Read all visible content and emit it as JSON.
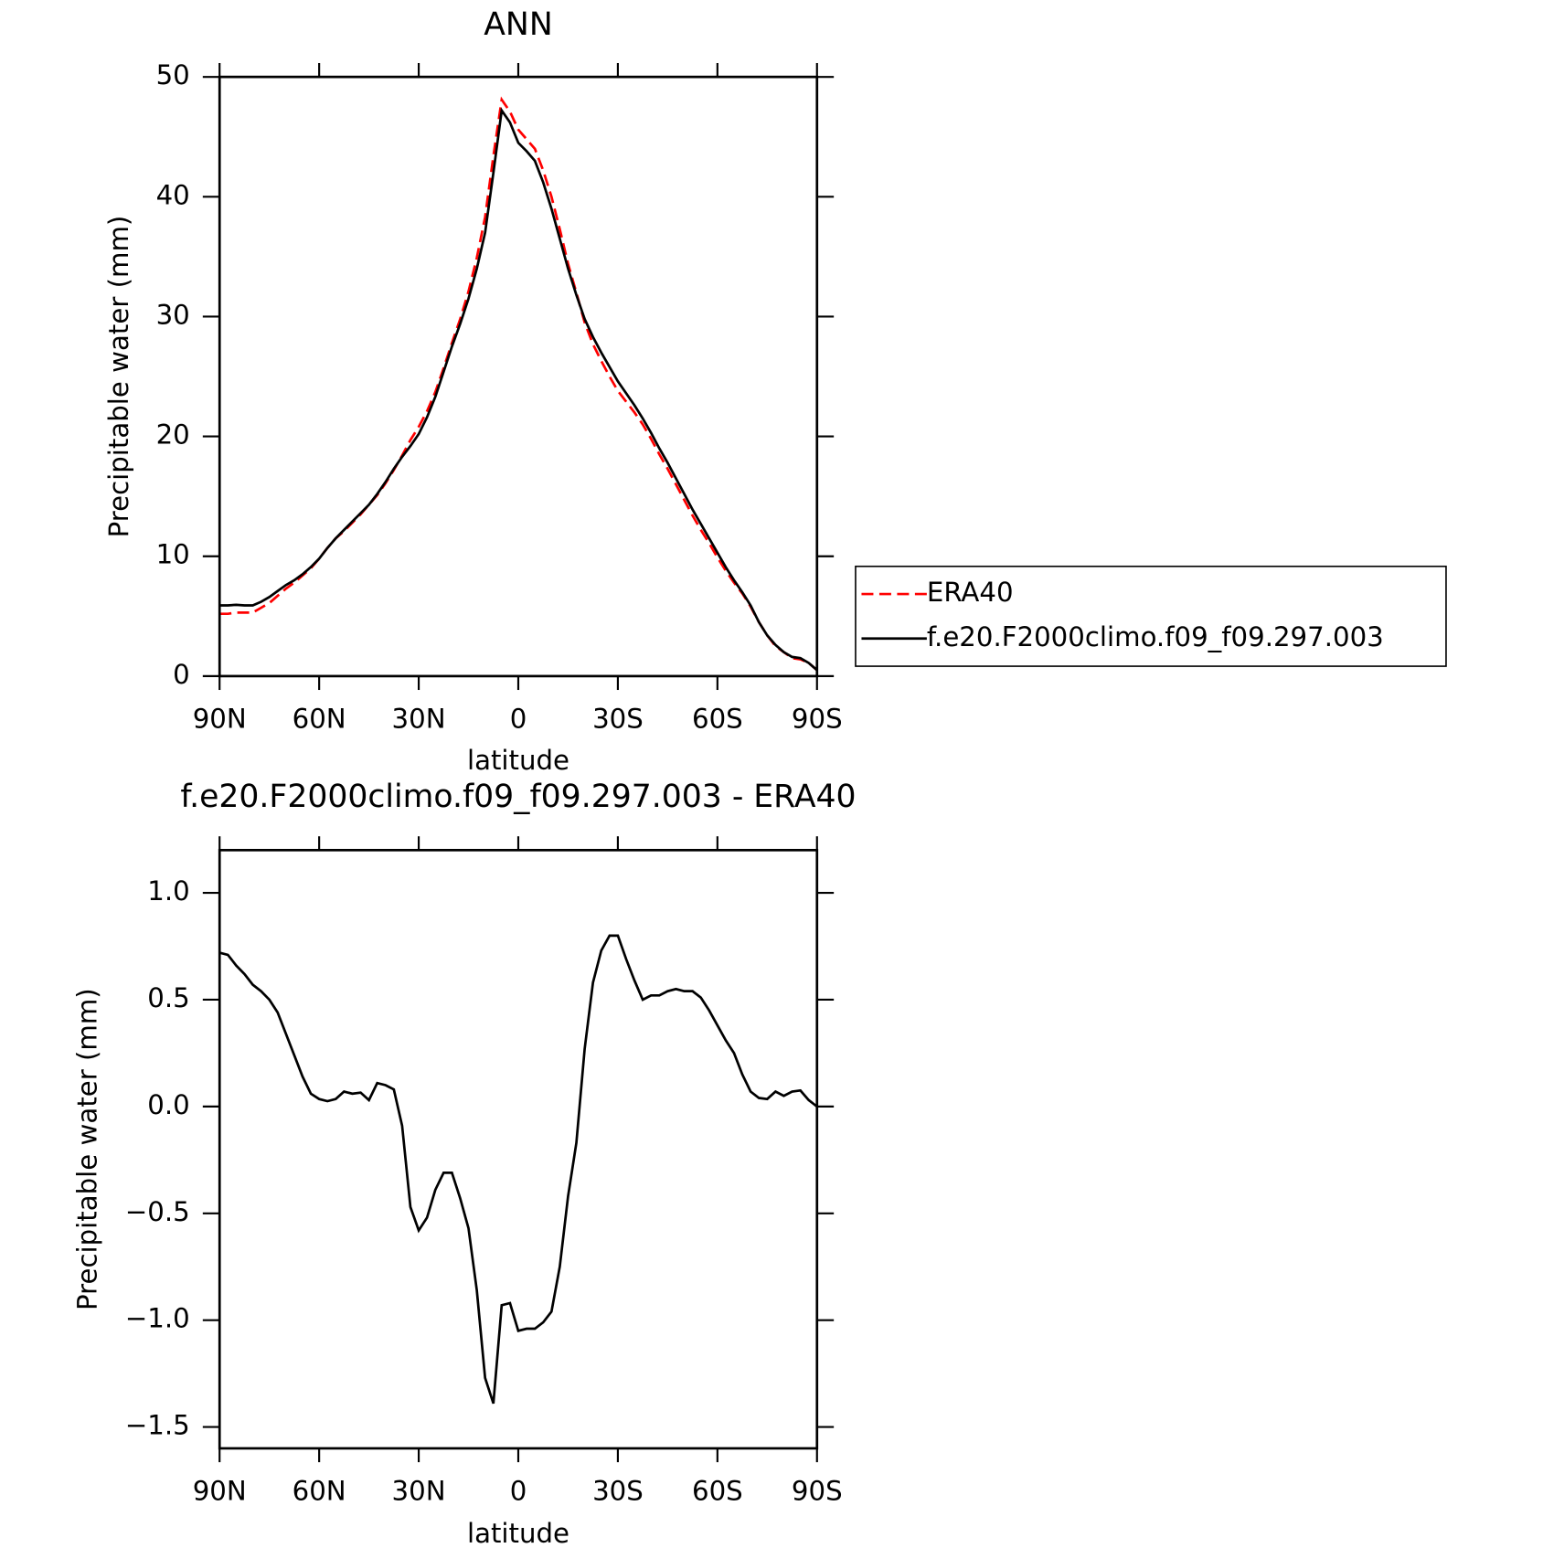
{
  "chart_data": [
    {
      "type": "line",
      "title": "ANN",
      "xlabel": "latitude",
      "ylabel": "Precipitable water (mm)",
      "x": [
        90,
        87.5,
        85,
        82.5,
        80,
        77.5,
        75,
        72.5,
        70,
        67.5,
        65,
        62.5,
        60,
        57.5,
        55,
        52.5,
        50,
        47.5,
        45,
        42.5,
        40,
        37.5,
        35,
        32.5,
        30,
        27.5,
        25,
        22.5,
        20,
        17.5,
        15,
        12.5,
        10,
        7.5,
        5,
        2.5,
        0,
        -2.5,
        -5,
        -7.5,
        -10,
        -12.5,
        -15,
        -17.5,
        -20,
        -22.5,
        -25,
        -27.5,
        -30,
        -32.5,
        -35,
        -37.5,
        -40,
        -42.5,
        -45,
        -47.5,
        -50,
        -52.5,
        -55,
        -57.5,
        -60,
        -62.5,
        -65,
        -67.5,
        -70,
        -72.5,
        -75,
        -77.5,
        -80,
        -82.5,
        -85,
        -87.5,
        -90
      ],
      "series": [
        {
          "name": "ERA40",
          "color": "#ff0000",
          "linestyle": "dashed",
          "values": [
            5.2,
            5.2,
            5.3,
            5.3,
            5.3,
            5.7,
            6.1,
            6.7,
            7.3,
            7.8,
            8.4,
            9.0,
            9.8,
            10.7,
            11.5,
            12.1,
            12.8,
            13.5,
            14.3,
            15.1,
            16.1,
            17.2,
            18.4,
            19.7,
            20.8,
            22.1,
            23.7,
            25.7,
            27.8,
            29.8,
            32.1,
            34.9,
            38.3,
            43.4,
            48.1,
            47.1,
            45.6,
            44.8,
            44.0,
            42.2,
            40.0,
            37.3,
            34.4,
            32.0,
            29.5,
            27.7,
            26.3,
            25.0,
            23.8,
            22.9,
            22.0,
            21.0,
            19.8,
            18.5,
            17.3,
            16.0,
            14.7,
            13.4,
            12.2,
            11.1,
            9.9,
            8.8,
            7.8,
            6.9,
            5.8,
            4.5,
            3.4,
            2.5,
            2.0,
            1.5,
            1.4,
            1.1,
            0.5
          ]
        },
        {
          "name": "f.e20.F2000climo.f09_f09.297.003",
          "color": "#000000",
          "linestyle": "solid",
          "values": [
            5.9,
            5.9,
            5.95,
            5.9,
            5.9,
            6.2,
            6.6,
            7.1,
            7.6,
            8.0,
            8.5,
            9.1,
            9.8,
            10.7,
            11.5,
            12.2,
            12.9,
            13.6,
            14.3,
            15.2,
            16.2,
            17.3,
            18.3,
            19.2,
            20.2,
            21.6,
            23.3,
            25.4,
            27.5,
            29.4,
            31.5,
            34.0,
            37.0,
            42.0,
            47.2,
            46.2,
            44.5,
            43.8,
            43.0,
            41.2,
            39.0,
            36.5,
            34.0,
            31.8,
            29.8,
            28.3,
            27.0,
            25.8,
            24.6,
            23.6,
            22.6,
            21.5,
            20.3,
            19.0,
            17.8,
            16.5,
            15.2,
            13.9,
            12.7,
            11.5,
            10.3,
            9.1,
            8.0,
            7.0,
            5.9,
            4.5,
            3.4,
            2.6,
            2.0,
            1.6,
            1.5,
            1.1,
            0.5
          ]
        }
      ],
      "xlim": [
        90,
        -90
      ],
      "xticks": [
        {
          "value": 90,
          "label": "90N"
        },
        {
          "value": 60,
          "label": "60N"
        },
        {
          "value": 30,
          "label": "30N"
        },
        0,
        {
          "value": -30,
          "label": "30S"
        },
        {
          "value": -60,
          "label": "60S"
        },
        {
          "value": -90,
          "label": "90S"
        }
      ],
      "ylim": [
        0,
        50
      ],
      "yticks": [
        0,
        10,
        20,
        30,
        40,
        50
      ],
      "legend": "right"
    },
    {
      "type": "line",
      "title": "f.e20.F2000climo.f09_f09.297.003 - ERA40",
      "xlabel": "latitude",
      "ylabel": "Precipitable water (mm)",
      "x": [
        90,
        87.5,
        85,
        82.5,
        80,
        77.5,
        75,
        72.5,
        70,
        67.5,
        65,
        62.5,
        60,
        57.5,
        55,
        52.5,
        50,
        47.5,
        45,
        42.5,
        40,
        37.5,
        35,
        32.5,
        30,
        27.5,
        25,
        22.5,
        20,
        17.5,
        15,
        12.5,
        10,
        7.5,
        5,
        2.5,
        0,
        -2.5,
        -5,
        -7.5,
        -10,
        -12.5,
        -15,
        -17.5,
        -20,
        -22.5,
        -25,
        -27.5,
        -30,
        -32.5,
        -35,
        -37.5,
        -40,
        -42.5,
        -45,
        -47.5,
        -50,
        -52.5,
        -55,
        -57.5,
        -60,
        -62.5,
        -65,
        -67.5,
        -70,
        -72.5,
        -75,
        -77.5,
        -80,
        -82.5,
        -85,
        -87.5,
        -90
      ],
      "series": [
        {
          "color": "#000000",
          "linestyle": "solid",
          "values": [
            0.72,
            0.71,
            0.66,
            0.62,
            0.57,
            0.54,
            0.5,
            0.44,
            0.34,
            0.24,
            0.14,
            0.06,
            0.035,
            0.025,
            0.035,
            0.07,
            0.06,
            0.065,
            0.03,
            0.11,
            0.1,
            0.08,
            -0.09,
            -0.47,
            -0.58,
            -0.52,
            -0.39,
            -0.31,
            -0.31,
            -0.43,
            -0.57,
            -0.86,
            -1.27,
            -1.39,
            -0.93,
            -0.92,
            -1.05,
            -1.04,
            -1.04,
            -1.01,
            -0.96,
            -0.75,
            -0.42,
            -0.17,
            0.27,
            0.58,
            0.73,
            0.8,
            0.8,
            0.69,
            0.59,
            0.5,
            0.52,
            0.52,
            0.54,
            0.55,
            0.54,
            0.54,
            0.51,
            0.45,
            0.38,
            0.31,
            0.25,
            0.15,
            0.07,
            0.04,
            0.035,
            0.07,
            0.05,
            0.07,
            0.075,
            0.03,
            0
          ]
        }
      ],
      "xlim": [
        90,
        -90
      ],
      "xticks": [
        {
          "value": 90,
          "label": "90N"
        },
        {
          "value": 60,
          "label": "60N"
        },
        {
          "value": 30,
          "label": "30N"
        },
        0,
        {
          "value": -30,
          "label": "30S"
        },
        {
          "value": -60,
          "label": "60S"
        },
        {
          "value": -90,
          "label": "90S"
        }
      ],
      "ylim": [
        -1.6,
        1.2
      ],
      "yticks": [
        {
          "value": -1.5,
          "label": "−1.5"
        },
        {
          "value": -1,
          "label": "−1.0"
        },
        {
          "value": -0.5,
          "label": "−0.5"
        },
        {
          "value": 0,
          "label": "0.0"
        },
        0.5,
        {
          "value": 1,
          "label": "1.0"
        }
      ]
    }
  ]
}
